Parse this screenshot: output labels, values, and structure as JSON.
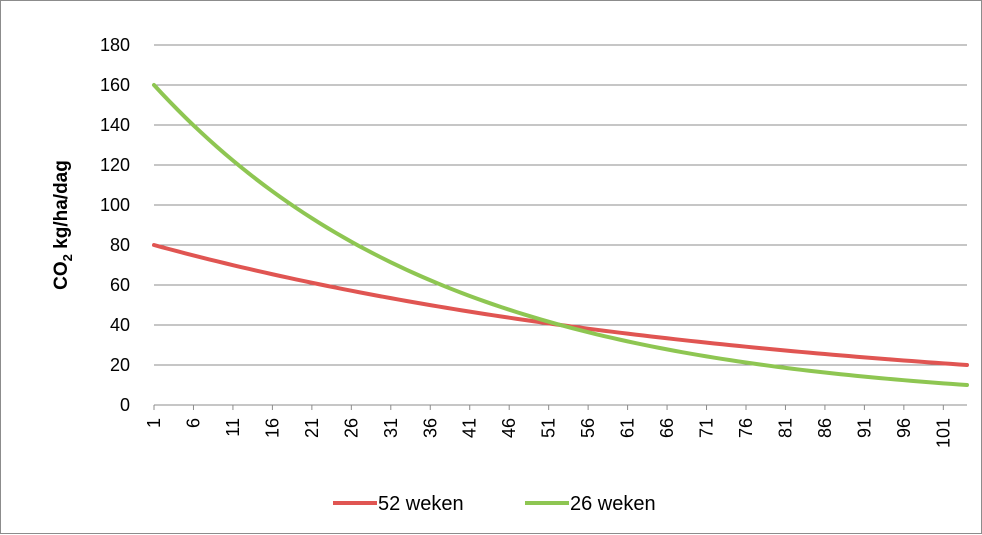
{
  "chart_data": {
    "type": "line",
    "title": "",
    "ylabel": {
      "main": "CO",
      "sub": "2",
      "rest": " kg/ha/dag"
    },
    "xlabel": "",
    "ylim": [
      0,
      180
    ],
    "yticks": [
      0,
      20,
      40,
      60,
      80,
      100,
      120,
      140,
      160,
      180
    ],
    "x_start": 1,
    "x_end": 104,
    "xtick_labels": [
      "1",
      "6",
      "11",
      "16",
      "21",
      "26",
      "31",
      "36",
      "41",
      "46",
      "51",
      "56",
      "61",
      "66",
      "71",
      "76",
      "81",
      "86",
      "91",
      "96",
      "101"
    ],
    "grid": "horizontal",
    "legend_position": "bottom",
    "series": [
      {
        "name": "52 weken",
        "color": "#e05552",
        "start": 80,
        "end": 20,
        "decay": "exponential"
      },
      {
        "name": "26 weken",
        "color": "#8ec652",
        "start": 160,
        "end": 10,
        "decay": "exponential"
      }
    ]
  }
}
